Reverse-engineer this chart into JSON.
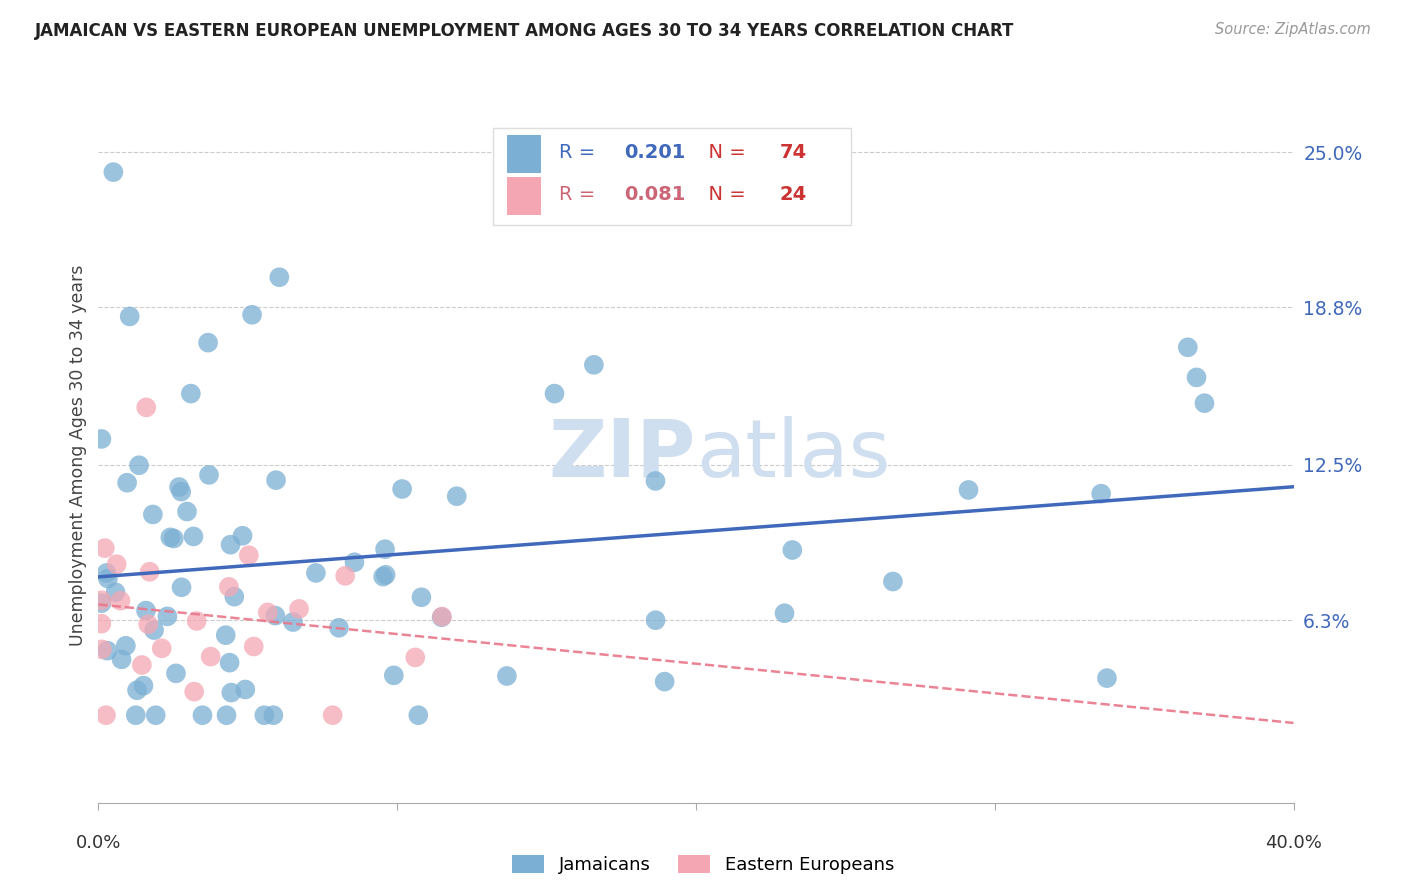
{
  "title": "JAMAICAN VS EASTERN EUROPEAN UNEMPLOYMENT AMONG AGES 30 TO 34 YEARS CORRELATION CHART",
  "source": "Source: ZipAtlas.com",
  "ylabel": "Unemployment Among Ages 30 to 34 years",
  "ytick_labels": [
    "6.3%",
    "12.5%",
    "18.8%",
    "25.0%"
  ],
  "ytick_values": [
    0.063,
    0.125,
    0.188,
    0.25
  ],
  "xlim": [
    0.0,
    0.4
  ],
  "ylim": [
    -0.01,
    0.268
  ],
  "blue_R": "0.201",
  "blue_N": "74",
  "pink_R": "0.081",
  "pink_N": "24",
  "blue_color": "#7BAFD4",
  "pink_color": "#F4A7B3",
  "blue_line_color": "#4169BB",
  "pink_line_color": "#E8778A",
  "blue_text_color": "#4169BB",
  "pink_text_color": "#CC6677",
  "red_text_color": "#CC3333",
  "watermark_color": "#D0DFF0"
}
